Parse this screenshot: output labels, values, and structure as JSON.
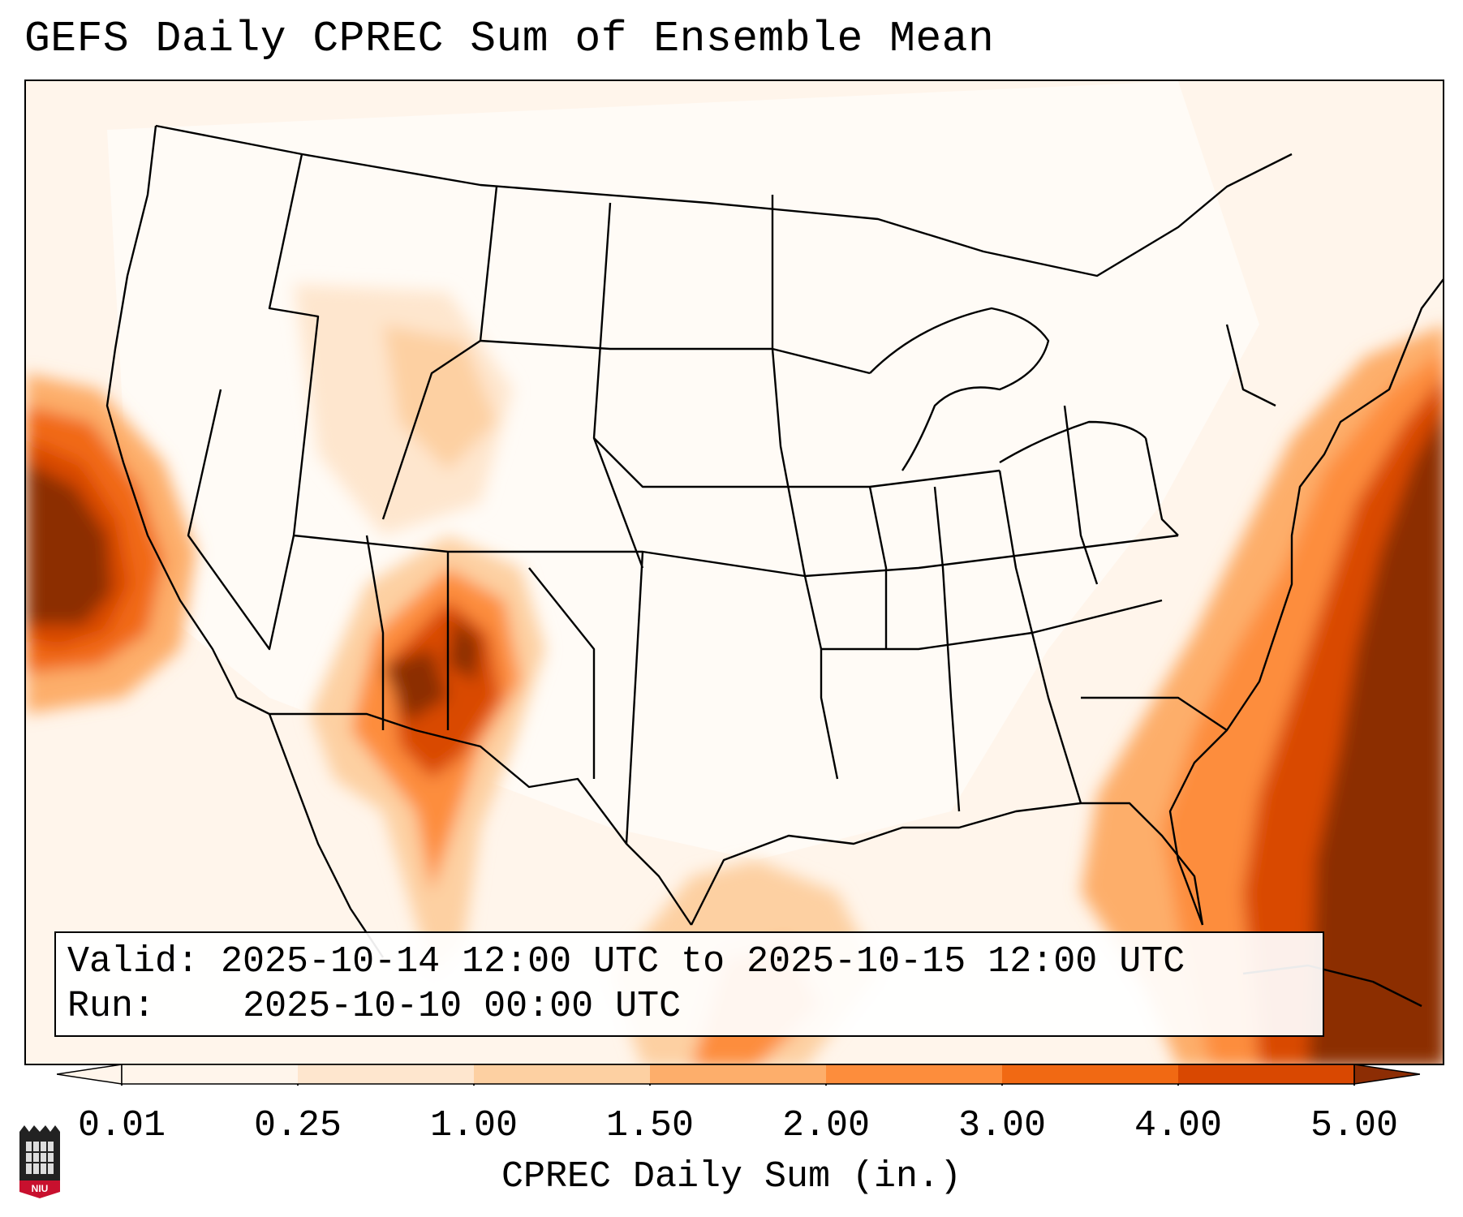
{
  "title": "GEFS Daily CPREC Sum of Ensemble Mean",
  "info": {
    "valid_label": "Valid:",
    "valid_value": "2025-10-14 12:00 UTC to 2025-10-15 12:00 UTC",
    "run_label": "Run:",
    "run_value": "2025-10-10 00:00 UTC"
  },
  "colorbar": {
    "label": "CPREC Daily Sum (in.)",
    "ticks": [
      "0.01",
      "0.25",
      "1.00",
      "1.50",
      "2.00",
      "3.00",
      "4.00",
      "5.00"
    ],
    "colors": [
      "#fff5eb",
      "#fee6ce",
      "#fdd0a2",
      "#fdae6b",
      "#fd8d3c",
      "#f16913",
      "#d94801",
      "#8c2d04"
    ]
  },
  "logo": {
    "text": "NIU",
    "icon": "niu-logo-icon"
  }
}
